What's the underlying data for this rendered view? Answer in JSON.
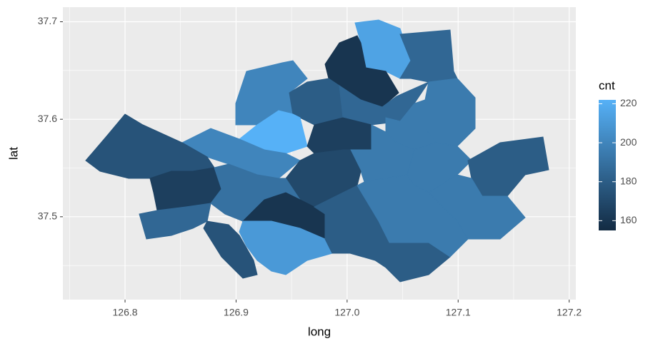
{
  "chart_data": {
    "type": "choropleth",
    "x_label": "long",
    "y_label": "lat",
    "xlim": [
      126.744,
      127.206
    ],
    "ylim": [
      37.415,
      37.715
    ],
    "xticks": [
      126.8,
      126.9,
      {
        "value": 127.0,
        "label": "127.0"
      },
      127.1,
      127.2
    ],
    "yticks": [
      37.5,
      37.6,
      37.7
    ],
    "grid": true,
    "legend_title": "cnt",
    "legend_ticks": [
      160,
      180,
      200,
      220
    ],
    "color_limits": [
      155,
      222
    ],
    "color_low": "#132B43",
    "color_high": "#56B1F7",
    "values": [
      215,
      185,
      160,
      200,
      180,
      185,
      195,
      195,
      222,
      200,
      165,
      195,
      195,
      180,
      170,
      175,
      165,
      185,
      190,
      160,
      175,
      210,
      180,
      195,
      195
    ]
  }
}
